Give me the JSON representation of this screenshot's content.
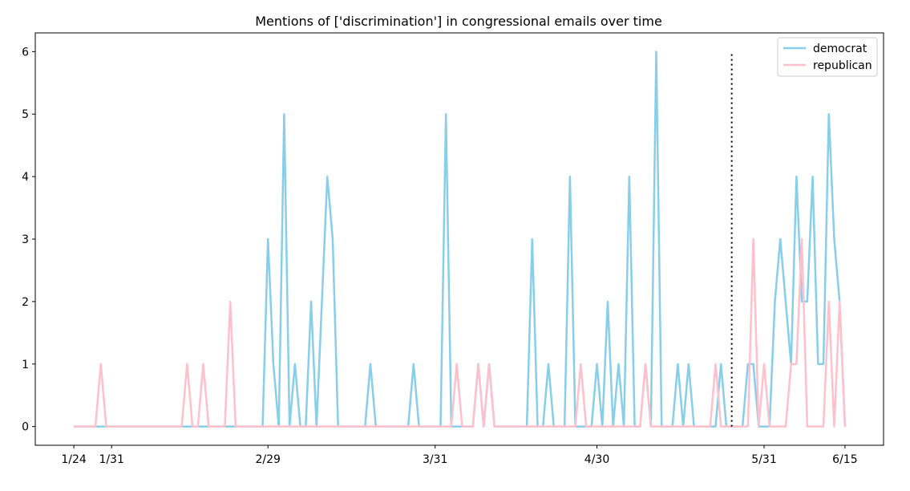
{
  "chart_data": {
    "type": "line",
    "title": "Mentions of ['discrimination'] in congressional emails over time",
    "xlabel": "",
    "ylabel": "",
    "x_start": "2024-01-24",
    "x_end": "2024-06-15",
    "xlim": [
      "2024-01-24",
      "2024-06-15"
    ],
    "ylim": [
      -0.3,
      6.3
    ],
    "x_ticks": [
      {
        "date": "2024-01-24",
        "label": "1/24"
      },
      {
        "date": "2024-01-31",
        "label": "1/31"
      },
      {
        "date": "2024-02-29",
        "label": "2/29"
      },
      {
        "date": "2024-03-31",
        "label": "3/31"
      },
      {
        "date": "2024-04-30",
        "label": "4/30"
      },
      {
        "date": "2024-05-31",
        "label": "5/31"
      },
      {
        "date": "2024-06-15",
        "label": "6/15"
      }
    ],
    "y_ticks": [
      0,
      1,
      2,
      3,
      4,
      5,
      6
    ],
    "grid": false,
    "legend_position": "top-right",
    "vline": {
      "date": "2024-05-25",
      "ymin": 0,
      "ymax": 6,
      "style": "dotted",
      "color": "#000000"
    },
    "series": [
      {
        "name": "democrat",
        "color": "#87CEEB",
        "points": [
          [
            "2024-01-24",
            0
          ],
          [
            "2024-02-28",
            0
          ],
          [
            "2024-02-29",
            3
          ],
          [
            "2024-03-01",
            1
          ],
          [
            "2024-03-02",
            0
          ],
          [
            "2024-03-03",
            5
          ],
          [
            "2024-03-04",
            0
          ],
          [
            "2024-03-05",
            1
          ],
          [
            "2024-03-06",
            0
          ],
          [
            "2024-03-07",
            0
          ],
          [
            "2024-03-08",
            2
          ],
          [
            "2024-03-09",
            0
          ],
          [
            "2024-03-10",
            2
          ],
          [
            "2024-03-11",
            4
          ],
          [
            "2024-03-12",
            3
          ],
          [
            "2024-03-13",
            0
          ],
          [
            "2024-03-18",
            0
          ],
          [
            "2024-03-19",
            1
          ],
          [
            "2024-03-20",
            0
          ],
          [
            "2024-03-26",
            0
          ],
          [
            "2024-03-27",
            1
          ],
          [
            "2024-03-28",
            0
          ],
          [
            "2024-04-01",
            0
          ],
          [
            "2024-04-02",
            5
          ],
          [
            "2024-04-03",
            0
          ],
          [
            "2024-04-07",
            0
          ],
          [
            "2024-04-08",
            1
          ],
          [
            "2024-04-09",
            0
          ],
          [
            "2024-04-10",
            1
          ],
          [
            "2024-04-11",
            0
          ],
          [
            "2024-04-17",
            0
          ],
          [
            "2024-04-18",
            3
          ],
          [
            "2024-04-19",
            0
          ],
          [
            "2024-04-20",
            0
          ],
          [
            "2024-04-21",
            1
          ],
          [
            "2024-04-22",
            0
          ],
          [
            "2024-04-24",
            0
          ],
          [
            "2024-04-25",
            4
          ],
          [
            "2024-04-26",
            0
          ],
          [
            "2024-04-29",
            0
          ],
          [
            "2024-04-30",
            1
          ],
          [
            "2024-05-01",
            0
          ],
          [
            "2024-05-02",
            2
          ],
          [
            "2024-05-03",
            0
          ],
          [
            "2024-05-04",
            1
          ],
          [
            "2024-05-05",
            0
          ],
          [
            "2024-05-06",
            4
          ],
          [
            "2024-05-07",
            0
          ],
          [
            "2024-05-08",
            0
          ],
          [
            "2024-05-09",
            1
          ],
          [
            "2024-05-10",
            0
          ],
          [
            "2024-05-11",
            6
          ],
          [
            "2024-05-12",
            0
          ],
          [
            "2024-05-14",
            0
          ],
          [
            "2024-05-15",
            1
          ],
          [
            "2024-05-16",
            0
          ],
          [
            "2024-05-17",
            1
          ],
          [
            "2024-05-18",
            0
          ],
          [
            "2024-05-22",
            0
          ],
          [
            "2024-05-23",
            1
          ],
          [
            "2024-05-24",
            0
          ],
          [
            "2024-05-27",
            0
          ],
          [
            "2024-05-28",
            1
          ],
          [
            "2024-05-29",
            1
          ],
          [
            "2024-05-30",
            0
          ],
          [
            "2024-05-31",
            0
          ],
          [
            "2024-06-01",
            0
          ],
          [
            "2024-06-02",
            2
          ],
          [
            "2024-06-03",
            3
          ],
          [
            "2024-06-04",
            2
          ],
          [
            "2024-06-05",
            1
          ],
          [
            "2024-06-06",
            4
          ],
          [
            "2024-06-07",
            2
          ],
          [
            "2024-06-08",
            2
          ],
          [
            "2024-06-09",
            4
          ],
          [
            "2024-06-10",
            1
          ],
          [
            "2024-06-11",
            1
          ],
          [
            "2024-06-12",
            5
          ],
          [
            "2024-06-13",
            3
          ],
          [
            "2024-06-14",
            2
          ],
          [
            "2024-06-15",
            0
          ]
        ]
      },
      {
        "name": "republican",
        "color": "#FFC0CB",
        "points": [
          [
            "2024-01-24",
            0
          ],
          [
            "2024-01-28",
            0
          ],
          [
            "2024-01-29",
            1
          ],
          [
            "2024-01-30",
            0
          ],
          [
            "2024-02-13",
            0
          ],
          [
            "2024-02-14",
            1
          ],
          [
            "2024-02-15",
            0
          ],
          [
            "2024-02-16",
            0
          ],
          [
            "2024-02-17",
            1
          ],
          [
            "2024-02-18",
            0
          ],
          [
            "2024-02-21",
            0
          ],
          [
            "2024-02-22",
            2
          ],
          [
            "2024-02-23",
            0
          ],
          [
            "2024-04-03",
            0
          ],
          [
            "2024-04-04",
            1
          ],
          [
            "2024-04-05",
            0
          ],
          [
            "2024-04-07",
            0
          ],
          [
            "2024-04-08",
            1
          ],
          [
            "2024-04-09",
            0
          ],
          [
            "2024-04-10",
            1
          ],
          [
            "2024-04-11",
            0
          ],
          [
            "2024-04-26",
            0
          ],
          [
            "2024-04-27",
            1
          ],
          [
            "2024-04-28",
            0
          ],
          [
            "2024-05-08",
            0
          ],
          [
            "2024-05-09",
            1
          ],
          [
            "2024-05-10",
            0
          ],
          [
            "2024-05-21",
            0
          ],
          [
            "2024-05-22",
            1
          ],
          [
            "2024-05-23",
            0
          ],
          [
            "2024-05-28",
            0
          ],
          [
            "2024-05-29",
            3
          ],
          [
            "2024-05-30",
            0
          ],
          [
            "2024-05-31",
            1
          ],
          [
            "2024-06-01",
            0
          ],
          [
            "2024-06-04",
            0
          ],
          [
            "2024-06-05",
            1
          ],
          [
            "2024-06-06",
            1
          ],
          [
            "2024-06-07",
            3
          ],
          [
            "2024-06-08",
            0
          ],
          [
            "2024-06-11",
            0
          ],
          [
            "2024-06-12",
            2
          ],
          [
            "2024-06-13",
            0
          ],
          [
            "2024-06-14",
            2
          ],
          [
            "2024-06-15",
            0
          ]
        ]
      }
    ]
  }
}
